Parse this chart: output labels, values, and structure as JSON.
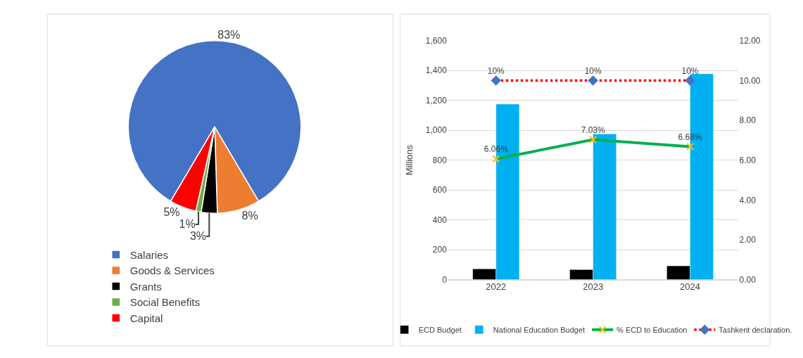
{
  "chart_data": [
    {
      "type": "pie",
      "categories": [
        "Salaries",
        "Goods & Services",
        "Grants",
        "Social Benefits",
        "Capital"
      ],
      "values": [
        83,
        8,
        3,
        1,
        5
      ],
      "colors": [
        "#4472c4",
        "#ed7d31",
        "#000000",
        "#70ad47",
        "#ff0000"
      ],
      "value_labels": [
        "83%",
        "8%",
        "3%",
        "1%",
        "5%"
      ],
      "legend": "bottom"
    },
    {
      "type": "bar",
      "categories": [
        "2022",
        "2023",
        "2024"
      ],
      "ylabel": "Millions",
      "ylim": [
        0,
        1600
      ],
      "yticks": [
        0,
        200,
        400,
        600,
        800,
        {
          "value": 1000,
          "label": "1,000"
        },
        {
          "value": 1200,
          "label": "1,200"
        },
        {
          "value": 1400,
          "label": "1,400"
        },
        {
          "value": 1600,
          "label": "1,600"
        }
      ],
      "y2lim": [
        0,
        12
      ],
      "y2ticks": [
        {
          "value": 0,
          "label": "0.00"
        },
        {
          "value": 2,
          "label": "2.00"
        },
        {
          "value": 4,
          "label": "4.00"
        },
        {
          "value": 6,
          "label": "6.00"
        },
        {
          "value": 8,
          "label": "8.00"
        },
        {
          "value": 10,
          "label": "10.00"
        },
        {
          "value": 12,
          "label": "12.00"
        }
      ],
      "grid": "y",
      "legend": "bottom",
      "series": [
        {
          "name": "ECD Budget",
          "color": "#000000",
          "values": [
            72,
            67,
            92
          ]
        },
        {
          "name": "National Education Budget",
          "color": "#00b0f0",
          "values": [
            1175,
            975,
            1378
          ]
        },
        {
          "name": "% ECD to Education",
          "type": "line",
          "axis": "y2",
          "color": "#00b050",
          "marker": "cross",
          "line_style": "solid",
          "values": [
            6.06,
            7.03,
            6.68
          ],
          "value_labels": [
            "6.06%",
            "7.03%",
            "6.68%"
          ]
        },
        {
          "name": "Tashkent declaration.",
          "type": "line",
          "axis": "y2",
          "color": "#ff0000",
          "marker": "diamond",
          "line_style": "dotted",
          "values": [
            10,
            10,
            10
          ],
          "value_labels": [
            "10%",
            "10%",
            "10%"
          ]
        }
      ]
    }
  ]
}
